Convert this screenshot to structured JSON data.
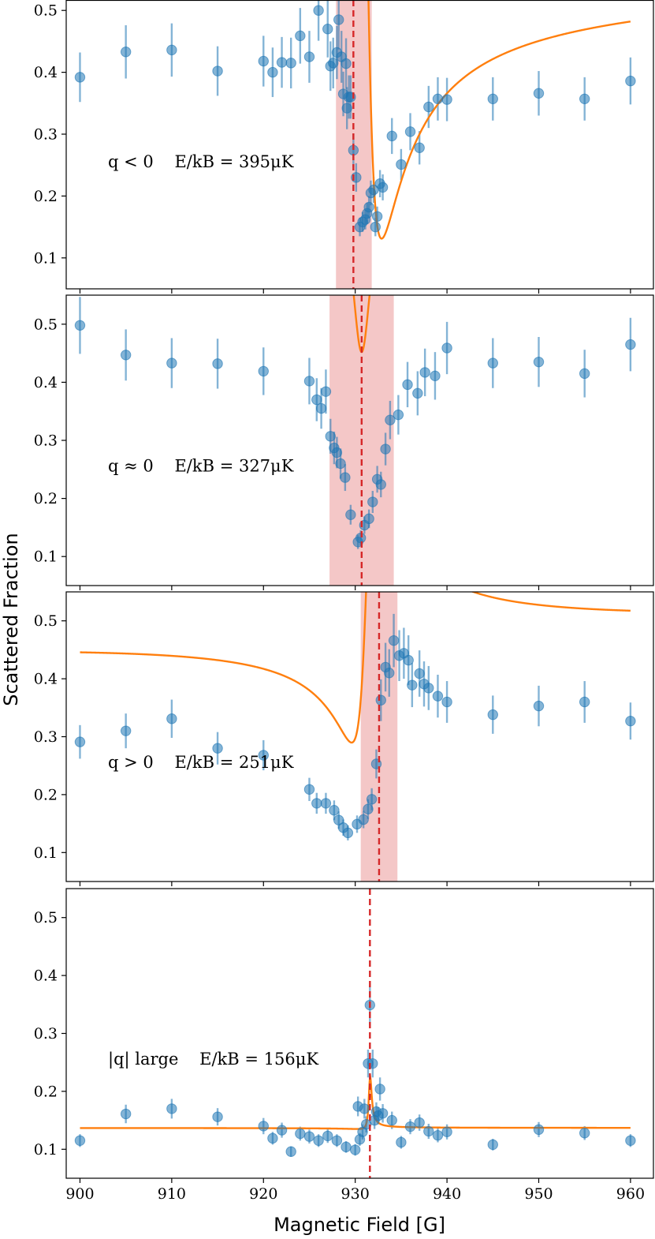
{
  "chart_data": {
    "type": "scatter",
    "xlabel": "Magnetic Field [G]",
    "ylabel": "Scattered Fraction",
    "xlim": [
      898.5,
      962.5
    ],
    "ylim": [
      0.05,
      0.55
    ],
    "xticks": [
      900,
      910,
      920,
      930,
      940,
      950,
      960
    ],
    "yticks": [
      0.1,
      0.2,
      0.3,
      0.4,
      0.5
    ],
    "colors": {
      "points": "#1f77b4",
      "fit": "#ff7f0e",
      "resonance": "#d62728",
      "band": "#f4c7c7"
    },
    "panels": [
      {
        "label": "q < 0    E/kB = 395μK",
        "resonance_center": 929.8,
        "band": [
          927.9,
          931.8
        ],
        "fit": {
          "A": 0.395,
          "q": -1.6,
          "x0": 930.8,
          "gamma": 2.6,
          "d": 0.13,
          "slope": 0.0004,
          "xref": 930
        },
        "points": [
          {
            "x": 900,
            "y": 0.392,
            "e": 0.04
          },
          {
            "x": 905,
            "y": 0.433,
            "e": 0.043
          },
          {
            "x": 910,
            "y": 0.436,
            "e": 0.043
          },
          {
            "x": 915,
            "y": 0.402,
            "e": 0.04
          },
          {
            "x": 920,
            "y": 0.418,
            "e": 0.041
          },
          {
            "x": 921,
            "y": 0.4,
            "e": 0.04
          },
          {
            "x": 922,
            "y": 0.416,
            "e": 0.041
          },
          {
            "x": 923,
            "y": 0.415,
            "e": 0.041
          },
          {
            "x": 924,
            "y": 0.459,
            "e": 0.045
          },
          {
            "x": 925,
            "y": 0.425,
            "e": 0.042
          },
          {
            "x": 926,
            "y": 0.5,
            "e": 0.049
          },
          {
            "x": 927,
            "y": 0.47,
            "e": 0.046
          },
          {
            "x": 927.3,
            "y": 0.41,
            "e": 0.04
          },
          {
            "x": 927.6,
            "y": 0.415,
            "e": 0.041
          },
          {
            "x": 928,
            "y": 0.432,
            "e": 0.043
          },
          {
            "x": 928.2,
            "y": 0.485,
            "e": 0.048
          },
          {
            "x": 928.5,
            "y": 0.425,
            "e": 0.042
          },
          {
            "x": 928.7,
            "y": 0.365,
            "e": 0.036
          },
          {
            "x": 929,
            "y": 0.414,
            "e": 0.041
          },
          {
            "x": 929.1,
            "y": 0.342,
            "e": 0.034
          },
          {
            "x": 929.3,
            "y": 0.36,
            "e": 0.035
          },
          {
            "x": 929.5,
            "y": 0.36,
            "e": 0.035
          },
          {
            "x": 929.8,
            "y": 0.274,
            "e": 0.027
          },
          {
            "x": 930.1,
            "y": 0.23,
            "e": 0.023
          },
          {
            "x": 930.5,
            "y": 0.15,
            "e": 0.015
          },
          {
            "x": 930.8,
            "y": 0.158,
            "e": 0.016
          },
          {
            "x": 931.1,
            "y": 0.162,
            "e": 0.016
          },
          {
            "x": 931.3,
            "y": 0.172,
            "e": 0.017
          },
          {
            "x": 931.5,
            "y": 0.182,
            "e": 0.018
          },
          {
            "x": 931.7,
            "y": 0.205,
            "e": 0.02
          },
          {
            "x": 932,
            "y": 0.21,
            "e": 0.021
          },
          {
            "x": 932.2,
            "y": 0.15,
            "e": 0.015
          },
          {
            "x": 932.4,
            "y": 0.167,
            "e": 0.016
          },
          {
            "x": 932.7,
            "y": 0.22,
            "e": 0.022
          },
          {
            "x": 933,
            "y": 0.214,
            "e": 0.021
          },
          {
            "x": 934,
            "y": 0.297,
            "e": 0.029
          },
          {
            "x": 935,
            "y": 0.251,
            "e": 0.025
          },
          {
            "x": 936,
            "y": 0.304,
            "e": 0.03
          },
          {
            "x": 937,
            "y": 0.278,
            "e": 0.027
          },
          {
            "x": 938,
            "y": 0.344,
            "e": 0.034
          },
          {
            "x": 939,
            "y": 0.357,
            "e": 0.035
          },
          {
            "x": 940,
            "y": 0.356,
            "e": 0.035
          },
          {
            "x": 945,
            "y": 0.357,
            "e": 0.035
          },
          {
            "x": 950,
            "y": 0.366,
            "e": 0.036
          },
          {
            "x": 955,
            "y": 0.357,
            "e": 0.035
          },
          {
            "x": 960,
            "y": 0.386,
            "e": 0.038
          }
        ]
      },
      {
        "label": "q ≈ 0    E/kB = 327μK",
        "resonance_center": 930.7,
        "band": [
          927.2,
          934.2
        ],
        "fit": {
          "A": 0.32,
          "q": 0.0,
          "x0": 930.7,
          "gamma": 2.6,
          "d": 0.452,
          "slope": 0.0,
          "xref": 930
        },
        "points": [
          {
            "x": 900,
            "y": 0.498,
            "e": 0.049
          },
          {
            "x": 905,
            "y": 0.447,
            "e": 0.044
          },
          {
            "x": 910,
            "y": 0.433,
            "e": 0.043
          },
          {
            "x": 915,
            "y": 0.432,
            "e": 0.043
          },
          {
            "x": 920,
            "y": 0.419,
            "e": 0.041
          },
          {
            "x": 925,
            "y": 0.402,
            "e": 0.04
          },
          {
            "x": 925.8,
            "y": 0.37,
            "e": 0.037
          },
          {
            "x": 926.3,
            "y": 0.355,
            "e": 0.035
          },
          {
            "x": 926.8,
            "y": 0.384,
            "e": 0.038
          },
          {
            "x": 927.3,
            "y": 0.307,
            "e": 0.03
          },
          {
            "x": 927.7,
            "y": 0.287,
            "e": 0.028
          },
          {
            "x": 928,
            "y": 0.279,
            "e": 0.027
          },
          {
            "x": 928.4,
            "y": 0.26,
            "e": 0.026
          },
          {
            "x": 928.9,
            "y": 0.236,
            "e": 0.023
          },
          {
            "x": 929.5,
            "y": 0.172,
            "e": 0.017
          },
          {
            "x": 930.3,
            "y": 0.125,
            "e": 0.012
          },
          {
            "x": 930.6,
            "y": 0.132,
            "e": 0.013
          },
          {
            "x": 931,
            "y": 0.154,
            "e": 0.015
          },
          {
            "x": 931.5,
            "y": 0.165,
            "e": 0.016
          },
          {
            "x": 931.9,
            "y": 0.194,
            "e": 0.019
          },
          {
            "x": 932.4,
            "y": 0.233,
            "e": 0.023
          },
          {
            "x": 932.8,
            "y": 0.224,
            "e": 0.022
          },
          {
            "x": 933.3,
            "y": 0.285,
            "e": 0.028
          },
          {
            "x": 933.8,
            "y": 0.335,
            "e": 0.033
          },
          {
            "x": 934.7,
            "y": 0.344,
            "e": 0.034
          },
          {
            "x": 935.7,
            "y": 0.396,
            "e": 0.039
          },
          {
            "x": 936.8,
            "y": 0.381,
            "e": 0.038
          },
          {
            "x": 937.6,
            "y": 0.417,
            "e": 0.041
          },
          {
            "x": 938.7,
            "y": 0.411,
            "e": 0.041
          },
          {
            "x": 940,
            "y": 0.459,
            "e": 0.045
          },
          {
            "x": 945,
            "y": 0.433,
            "e": 0.043
          },
          {
            "x": 950,
            "y": 0.435,
            "e": 0.043
          },
          {
            "x": 955,
            "y": 0.415,
            "e": 0.041
          },
          {
            "x": 960,
            "y": 0.465,
            "e": 0.046
          }
        ]
      },
      {
        "label": "q > 0    E/kB = 251μK",
        "resonance_center": 932.6,
        "band": [
          930.6,
          934.6
        ],
        "fit": {
          "A": 0.19,
          "q": 1.45,
          "x0": 931.5,
          "gamma": 2.6,
          "d": 0.29,
          "slope": 0.0004,
          "xref": 930
        },
        "points": [
          {
            "x": 900,
            "y": 0.291,
            "e": 0.029
          },
          {
            "x": 905,
            "y": 0.31,
            "e": 0.03
          },
          {
            "x": 910,
            "y": 0.331,
            "e": 0.033
          },
          {
            "x": 915,
            "y": 0.28,
            "e": 0.028
          },
          {
            "x": 920,
            "y": 0.268,
            "e": 0.026
          },
          {
            "x": 925,
            "y": 0.209,
            "e": 0.02
          },
          {
            "x": 925.8,
            "y": 0.185,
            "e": 0.018
          },
          {
            "x": 926.8,
            "y": 0.185,
            "e": 0.018
          },
          {
            "x": 927.7,
            "y": 0.173,
            "e": 0.017
          },
          {
            "x": 928.2,
            "y": 0.156,
            "e": 0.015
          },
          {
            "x": 928.7,
            "y": 0.143,
            "e": 0.014
          },
          {
            "x": 929.2,
            "y": 0.134,
            "e": 0.013
          },
          {
            "x": 930.2,
            "y": 0.149,
            "e": 0.015
          },
          {
            "x": 930.9,
            "y": 0.157,
            "e": 0.015
          },
          {
            "x": 931.4,
            "y": 0.175,
            "e": 0.017
          },
          {
            "x": 931.8,
            "y": 0.192,
            "e": 0.019
          },
          {
            "x": 932.3,
            "y": 0.253,
            "e": 0.025
          },
          {
            "x": 932.8,
            "y": 0.363,
            "e": 0.036
          },
          {
            "x": 933.3,
            "y": 0.42,
            "e": 0.042
          },
          {
            "x": 933.7,
            "y": 0.41,
            "e": 0.041
          },
          {
            "x": 934.2,
            "y": 0.466,
            "e": 0.046
          },
          {
            "x": 934.8,
            "y": 0.44,
            "e": 0.044
          },
          {
            "x": 935.3,
            "y": 0.444,
            "e": 0.044
          },
          {
            "x": 935.8,
            "y": 0.432,
            "e": 0.043
          },
          {
            "x": 936.2,
            "y": 0.389,
            "e": 0.038
          },
          {
            "x": 937,
            "y": 0.409,
            "e": 0.04
          },
          {
            "x": 937.5,
            "y": 0.391,
            "e": 0.039
          },
          {
            "x": 938,
            "y": 0.384,
            "e": 0.038
          },
          {
            "x": 939,
            "y": 0.37,
            "e": 0.037
          },
          {
            "x": 940,
            "y": 0.36,
            "e": 0.036
          },
          {
            "x": 945,
            "y": 0.338,
            "e": 0.033
          },
          {
            "x": 950,
            "y": 0.353,
            "e": 0.035
          },
          {
            "x": 955,
            "y": 0.36,
            "e": 0.036
          },
          {
            "x": 960,
            "y": 0.327,
            "e": 0.032
          }
        ]
      },
      {
        "label": "|q| large    E/kB = 156μK",
        "resonance_center": 931.6,
        "band": null,
        "fit": {
          "A": 0.0018,
          "q": 7.0,
          "x0": 931.6,
          "gamma": 0.4,
          "d": 0.135,
          "slope": 0.0,
          "xref": 930
        },
        "points": [
          {
            "x": 900,
            "y": 0.115,
            "e": 0.011
          },
          {
            "x": 905,
            "y": 0.161,
            "e": 0.016
          },
          {
            "x": 910,
            "y": 0.17,
            "e": 0.017
          },
          {
            "x": 915,
            "y": 0.156,
            "e": 0.015
          },
          {
            "x": 920,
            "y": 0.14,
            "e": 0.014
          },
          {
            "x": 921,
            "y": 0.119,
            "e": 0.011
          },
          {
            "x": 922,
            "y": 0.133,
            "e": 0.013
          },
          {
            "x": 923,
            "y": 0.096,
            "e": 0.009
          },
          {
            "x": 924,
            "y": 0.127,
            "e": 0.012
          },
          {
            "x": 925,
            "y": 0.122,
            "e": 0.012
          },
          {
            "x": 926,
            "y": 0.115,
            "e": 0.011
          },
          {
            "x": 927,
            "y": 0.123,
            "e": 0.012
          },
          {
            "x": 928,
            "y": 0.115,
            "e": 0.011
          },
          {
            "x": 929,
            "y": 0.104,
            "e": 0.01
          },
          {
            "x": 930,
            "y": 0.099,
            "e": 0.01
          },
          {
            "x": 930.3,
            "y": 0.174,
            "e": 0.017
          },
          {
            "x": 930.5,
            "y": 0.117,
            "e": 0.011
          },
          {
            "x": 930.8,
            "y": 0.13,
            "e": 0.013
          },
          {
            "x": 931,
            "y": 0.17,
            "e": 0.017
          },
          {
            "x": 931.2,
            "y": 0.143,
            "e": 0.014
          },
          {
            "x": 931.4,
            "y": 0.248,
            "e": 0.024
          },
          {
            "x": 931.6,
            "y": 0.349,
            "e": 0.034
          },
          {
            "x": 931.9,
            "y": 0.248,
            "e": 0.024
          },
          {
            "x": 932.1,
            "y": 0.15,
            "e": 0.015
          },
          {
            "x": 932.3,
            "y": 0.165,
            "e": 0.016
          },
          {
            "x": 932.5,
            "y": 0.158,
            "e": 0.015
          },
          {
            "x": 932.7,
            "y": 0.204,
            "e": 0.02
          },
          {
            "x": 933,
            "y": 0.162,
            "e": 0.016
          },
          {
            "x": 934,
            "y": 0.15,
            "e": 0.015
          },
          {
            "x": 935,
            "y": 0.112,
            "e": 0.011
          },
          {
            "x": 936,
            "y": 0.139,
            "e": 0.013
          },
          {
            "x": 937,
            "y": 0.146,
            "e": 0.014
          },
          {
            "x": 938,
            "y": 0.131,
            "e": 0.013
          },
          {
            "x": 939,
            "y": 0.124,
            "e": 0.012
          },
          {
            "x": 940,
            "y": 0.13,
            "e": 0.013
          },
          {
            "x": 945,
            "y": 0.108,
            "e": 0.01
          },
          {
            "x": 950,
            "y": 0.134,
            "e": 0.013
          },
          {
            "x": 955,
            "y": 0.128,
            "e": 0.012
          },
          {
            "x": 960,
            "y": 0.115,
            "e": 0.011
          }
        ]
      }
    ]
  }
}
